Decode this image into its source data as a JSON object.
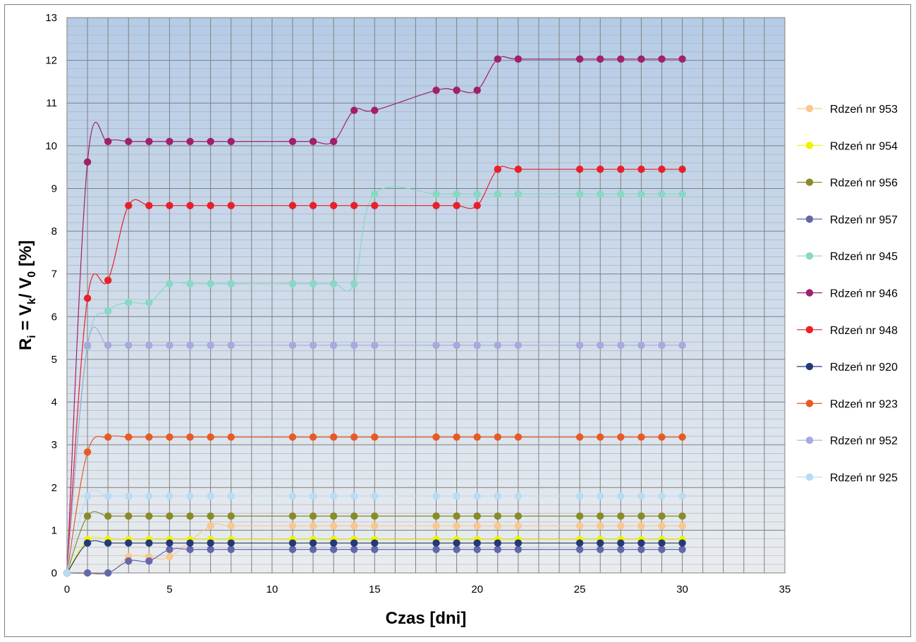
{
  "chart_data": {
    "type": "line",
    "title": "",
    "xlabel": "Czas [dni]",
    "ylabel": "Ri = Vk/ V0 [%]",
    "ylabel_parts": {
      "main": "R",
      "sub_i": "i",
      "eq": " = V",
      "sub_k": "k",
      "slash": "/ V",
      "sub_0": "0",
      "unit": " [%]"
    },
    "xlim": [
      0,
      35
    ],
    "ylim": [
      0,
      13
    ],
    "x_major_ticks": [
      "0",
      "5",
      "10",
      "15",
      "20",
      "25",
      "30",
      "35"
    ],
    "y_major_ticks": [
      "0",
      "1",
      "2",
      "3",
      "4",
      "5",
      "6",
      "7",
      "8",
      "9",
      "10",
      "11",
      "12",
      "13"
    ],
    "grid": true,
    "legend_position": "right",
    "x": [
      0,
      1,
      2,
      3,
      4,
      5,
      6,
      7,
      8,
      11,
      12,
      13,
      14,
      15,
      18,
      19,
      20,
      21,
      22,
      25,
      26,
      27,
      28,
      29,
      30
    ],
    "series": [
      {
        "name": "Rdzeń nr 953",
        "color": "#f9c88e",
        "values": [
          0,
          null,
          0,
          0.38,
          0.38,
          0.38,
          null,
          1.1,
          1.1,
          1.1,
          1.1,
          1.1,
          1.1,
          1.1,
          1.1,
          1.1,
          1.1,
          1.1,
          1.1,
          1.1,
          1.1,
          1.1,
          1.1,
          1.1,
          1.1
        ]
      },
      {
        "name": "Rdzeń nr 954",
        "color": "#f2f200",
        "values": [
          0,
          0.78,
          0.78,
          0.78,
          0.78,
          0.78,
          0.78,
          0.78,
          0.78,
          0.78,
          0.78,
          0.78,
          0.78,
          0.78,
          0.78,
          0.78,
          0.78,
          0.78,
          0.78,
          0.78,
          0.78,
          0.78,
          0.78,
          0.78,
          0.78
        ]
      },
      {
        "name": "Rdzeń nr 956",
        "color": "#8a8a2a",
        "values": [
          0,
          1.33,
          1.33,
          1.33,
          1.33,
          1.33,
          1.33,
          1.33,
          1.33,
          1.33,
          1.33,
          1.33,
          1.33,
          1.33,
          1.33,
          1.33,
          1.33,
          1.33,
          1.33,
          1.33,
          1.33,
          1.33,
          1.33,
          1.33,
          1.33
        ]
      },
      {
        "name": "Rdzeń nr 957",
        "color": "#6666aa",
        "values": [
          0,
          0,
          0,
          0.28,
          0.28,
          0.55,
          0.55,
          0.55,
          0.55,
          0.55,
          0.55,
          0.55,
          0.55,
          0.55,
          0.55,
          0.55,
          0.55,
          0.55,
          0.55,
          0.55,
          0.55,
          0.55,
          0.55,
          0.55,
          0.55
        ]
      },
      {
        "name": "Rdzeń nr 945",
        "color": "#88d8c4",
        "values": [
          0,
          5.3,
          6.13,
          6.33,
          6.33,
          6.77,
          6.77,
          6.77,
          6.77,
          6.77,
          6.77,
          6.77,
          6.77,
          8.87,
          8.87,
          8.87,
          8.87,
          8.87,
          8.87,
          8.87,
          8.87,
          8.87,
          8.87,
          8.87,
          8.87
        ]
      },
      {
        "name": "Rdzeń nr 946",
        "color": "#a0206a",
        "values": [
          0,
          9.62,
          10.1,
          10.1,
          10.1,
          10.1,
          10.1,
          10.1,
          10.1,
          10.1,
          10.1,
          10.1,
          10.83,
          10.83,
          11.3,
          11.3,
          11.3,
          12.03,
          12.03,
          12.03,
          12.03,
          12.03,
          12.03,
          12.03,
          12.03
        ]
      },
      {
        "name": "Rdzeń nr 948",
        "color": "#e8202a",
        "values": [
          0,
          6.43,
          6.85,
          8.6,
          8.6,
          8.6,
          8.6,
          8.6,
          8.6,
          8.6,
          8.6,
          8.6,
          8.6,
          8.6,
          8.6,
          8.6,
          8.6,
          9.45,
          9.45,
          9.45,
          9.45,
          9.45,
          9.45,
          9.45,
          9.45
        ]
      },
      {
        "name": "Rdzeń nr 920",
        "color": "#223a78",
        "values": [
          0,
          0.7,
          0.7,
          0.7,
          0.7,
          0.7,
          0.7,
          0.7,
          0.7,
          0.7,
          0.7,
          0.7,
          0.7,
          0.7,
          0.7,
          0.7,
          0.7,
          0.7,
          0.7,
          0.7,
          0.7,
          0.7,
          0.7,
          0.7,
          0.7
        ]
      },
      {
        "name": "Rdzeń nr 923",
        "color": "#e85a24",
        "values": [
          0,
          2.83,
          3.18,
          3.18,
          3.18,
          3.18,
          3.18,
          3.18,
          3.18,
          3.18,
          3.18,
          3.18,
          3.18,
          3.18,
          3.18,
          3.18,
          3.18,
          3.18,
          3.18,
          3.18,
          3.18,
          3.18,
          3.18,
          3.18,
          3.18
        ]
      },
      {
        "name": "Rdzeń nr 952",
        "color": "#a6aadc",
        "values": [
          0,
          5.33,
          5.33,
          5.33,
          5.33,
          5.33,
          5.33,
          5.33,
          5.33,
          5.33,
          5.33,
          5.33,
          5.33,
          5.33,
          5.33,
          5.33,
          5.33,
          5.33,
          5.33,
          5.33,
          5.33,
          5.33,
          5.33,
          5.33,
          5.33
        ]
      },
      {
        "name": "Rdzeń nr 925",
        "color": "#b8dcf4",
        "values": [
          0,
          1.8,
          1.8,
          1.8,
          1.8,
          1.8,
          1.8,
          1.8,
          1.8,
          1.8,
          1.8,
          1.8,
          1.8,
          1.8,
          1.8,
          1.8,
          1.8,
          1.8,
          1.8,
          1.8,
          1.8,
          1.8,
          1.8,
          1.8,
          1.8
        ]
      }
    ],
    "plot_background": {
      "top": "#b5cbe6",
      "bottom": "#e9ecef"
    }
  }
}
